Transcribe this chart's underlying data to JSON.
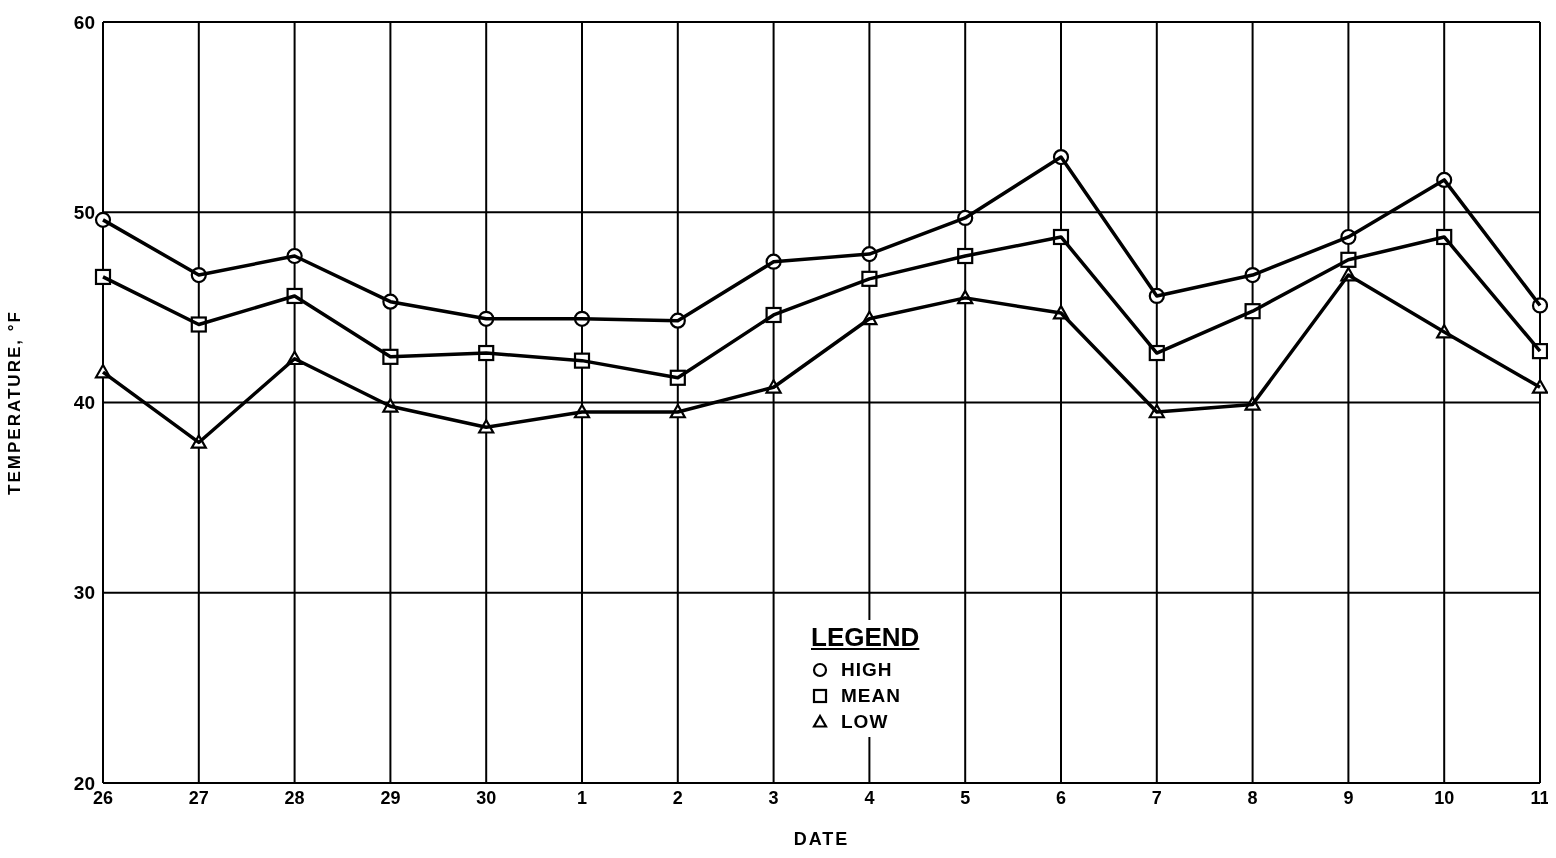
{
  "chart_data": {
    "type": "line",
    "xlabel": "DATE",
    "ylabel": "TEMPERATURE, °F",
    "legend_title": "LEGEND",
    "legend": "bottom",
    "grid": true,
    "line_style": "solid",
    "categories": [
      "26",
      "27",
      "28",
      "29",
      "30",
      "1",
      "2",
      "3",
      "4",
      "5",
      "6",
      "7",
      "8",
      "9",
      "10",
      "11"
    ],
    "ylim": [
      20,
      60
    ],
    "yticks": [
      20,
      30,
      40,
      50,
      60
    ],
    "series": [
      {
        "name": "HIGH",
        "color": "#000000",
        "marker": "circle",
        "values": [
          49.6,
          46.7,
          47.7,
          45.3,
          44.4,
          44.4,
          44.3,
          47.4,
          47.8,
          49.7,
          52.9,
          45.6,
          46.7,
          48.7,
          51.7,
          45.1
        ]
      },
      {
        "name": "MEAN",
        "color": "#000000",
        "marker": "square",
        "values": [
          46.6,
          44.1,
          45.6,
          42.4,
          42.6,
          42.2,
          41.3,
          44.6,
          46.5,
          47.7,
          48.7,
          42.6,
          44.8,
          47.5,
          48.7,
          42.7
        ]
      },
      {
        "name": "LOW",
        "color": "#000000",
        "marker": "triangle",
        "values": [
          41.6,
          37.9,
          42.3,
          39.8,
          38.7,
          39.5,
          39.5,
          40.8,
          44.4,
          45.5,
          44.7,
          39.5,
          39.9,
          46.7,
          43.7,
          40.8
        ]
      }
    ]
  }
}
